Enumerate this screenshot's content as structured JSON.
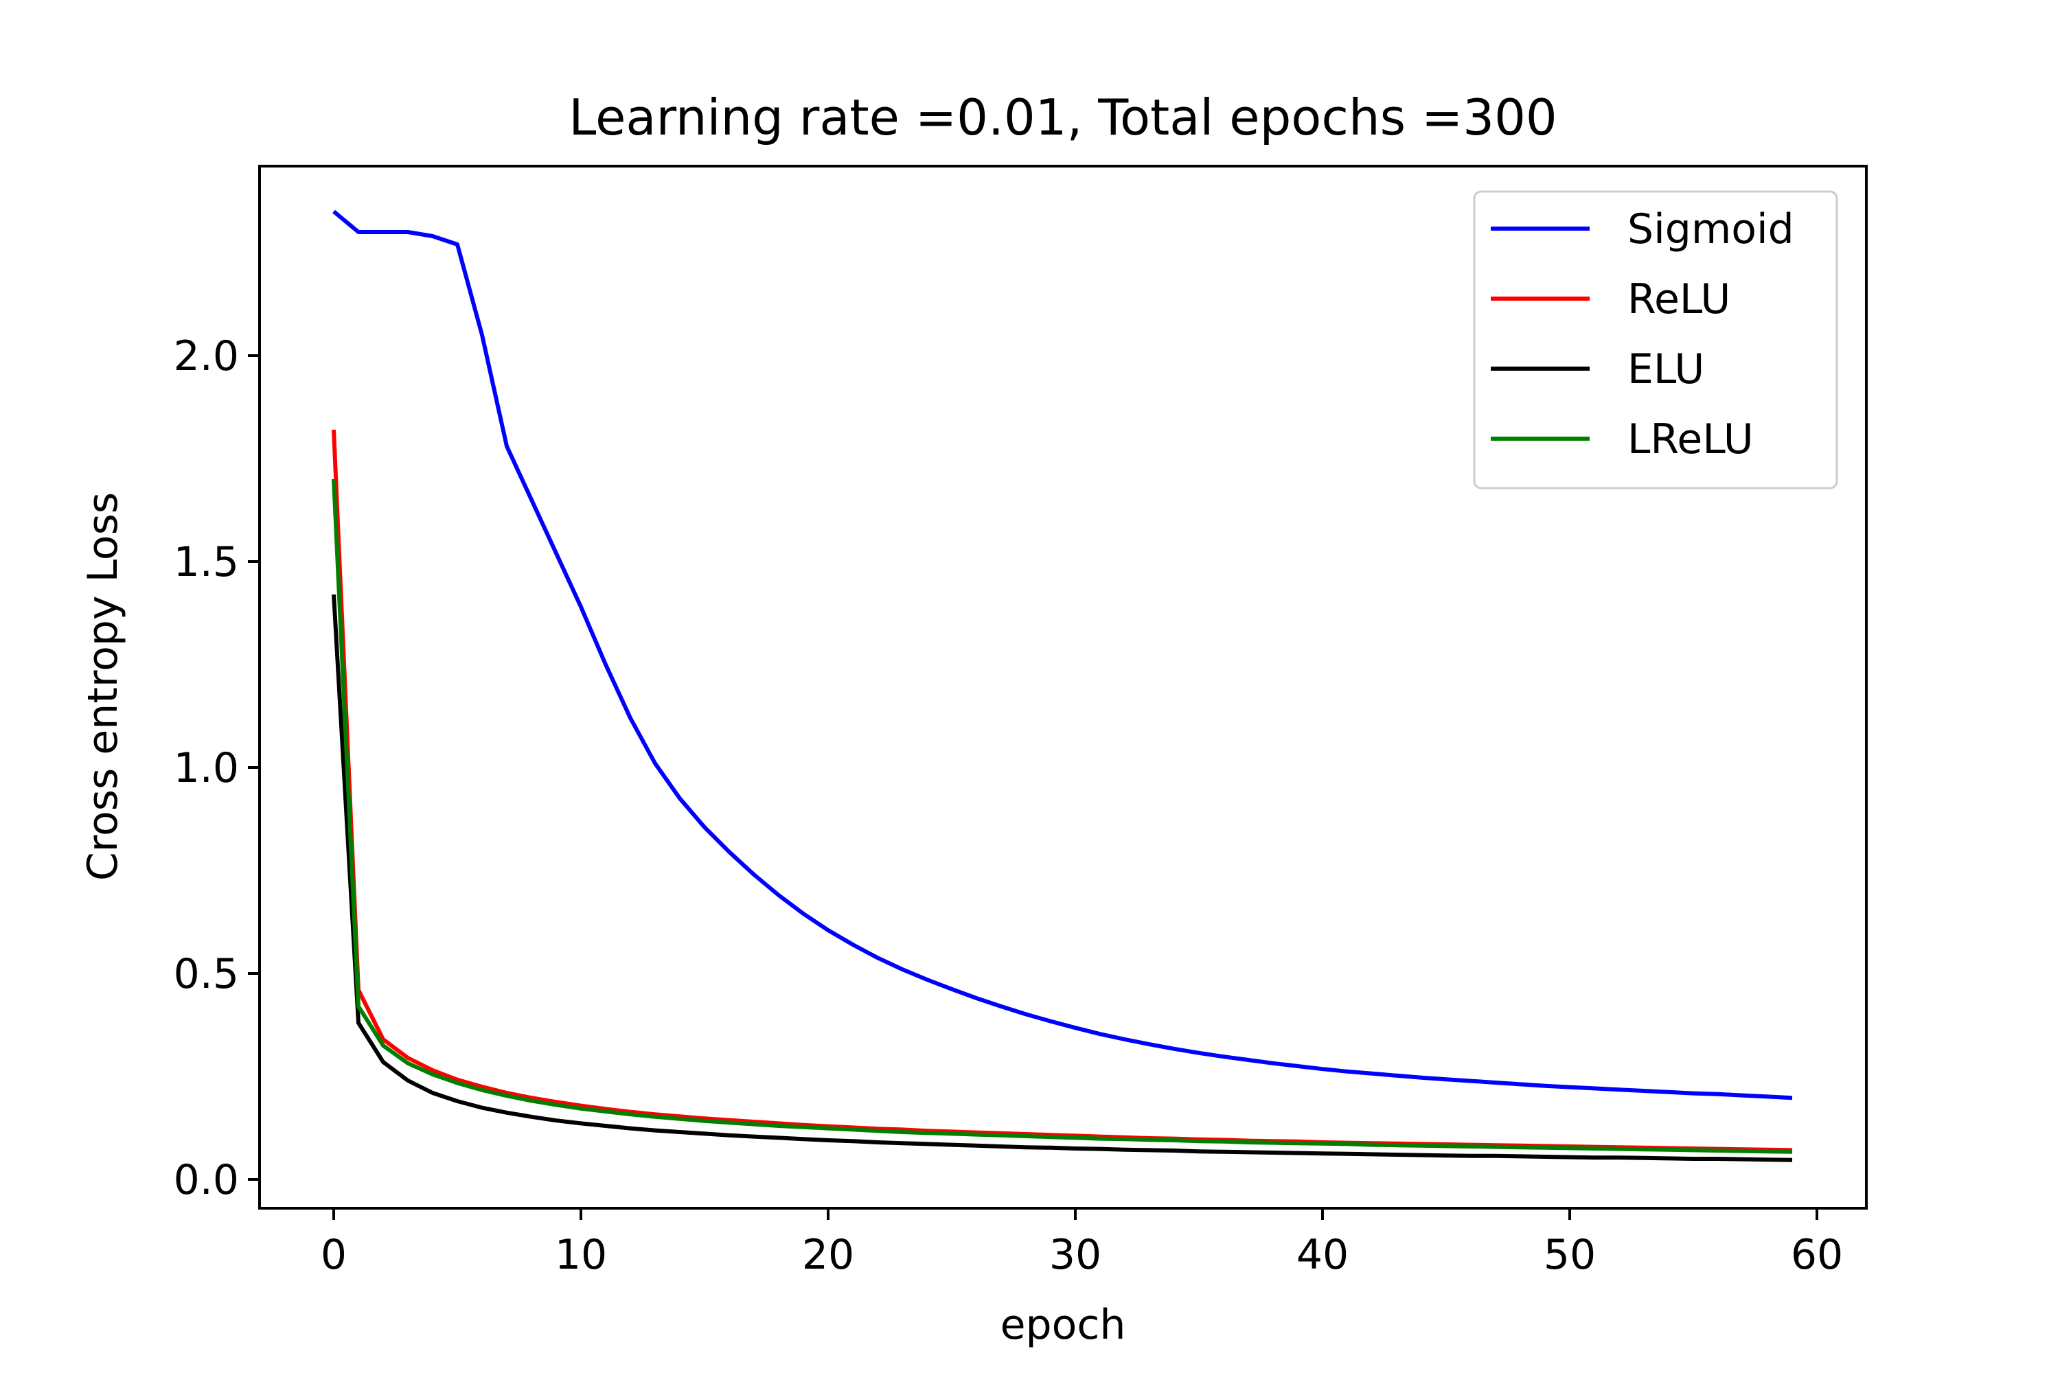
{
  "chart_data": {
    "type": "line",
    "title": "Learning rate =0.01, Total epochs =300",
    "xlabel": "epoch",
    "ylabel": "Cross entropy Loss",
    "xlim": [
      -3,
      62
    ],
    "ylim": [
      -0.07,
      2.46
    ],
    "xticks": [
      0,
      10,
      20,
      30,
      40,
      50,
      60
    ],
    "yticks": [
      0.0,
      0.5,
      1.0,
      1.5,
      2.0
    ],
    "xtick_labels": [
      "0",
      "10",
      "20",
      "30",
      "40",
      "50",
      "60"
    ],
    "ytick_labels": [
      "0.0",
      "0.5",
      "1.0",
      "1.5",
      "2.0"
    ],
    "grid": false,
    "legend_position": "top-right",
    "series": [
      {
        "name": "Sigmoid",
        "color": "#0000ff",
        "values": [
          2.35,
          2.3,
          2.3,
          2.3,
          2.29,
          2.27,
          2.05,
          1.78,
          1.65,
          1.52,
          1.39,
          1.25,
          1.12,
          1.01,
          0.925,
          0.855,
          0.795,
          0.74,
          0.69,
          0.645,
          0.605,
          0.57,
          0.538,
          0.51,
          0.485,
          0.462,
          0.44,
          0.42,
          0.401,
          0.384,
          0.368,
          0.353,
          0.34,
          0.328,
          0.317,
          0.307,
          0.298,
          0.29,
          0.282,
          0.275,
          0.268,
          0.262,
          0.257,
          0.252,
          0.247,
          0.243,
          0.239,
          0.235,
          0.231,
          0.227,
          0.224,
          0.221,
          0.218,
          0.215,
          0.212,
          0.209,
          0.207,
          0.204,
          0.201,
          0.198
        ]
      },
      {
        "name": "ReLU",
        "color": "#ff0000",
        "values": [
          1.82,
          0.46,
          0.34,
          0.295,
          0.265,
          0.242,
          0.225,
          0.21,
          0.198,
          0.188,
          0.179,
          0.171,
          0.164,
          0.158,
          0.153,
          0.148,
          0.144,
          0.14,
          0.136,
          0.132,
          0.129,
          0.126,
          0.123,
          0.121,
          0.118,
          0.116,
          0.114,
          0.112,
          0.11,
          0.108,
          0.106,
          0.104,
          0.102,
          0.1,
          0.099,
          0.097,
          0.096,
          0.094,
          0.093,
          0.092,
          0.09,
          0.089,
          0.088,
          0.087,
          0.086,
          0.085,
          0.084,
          0.083,
          0.082,
          0.081,
          0.08,
          0.079,
          0.078,
          0.077,
          0.076,
          0.075,
          0.074,
          0.073,
          0.072,
          0.071
        ]
      },
      {
        "name": "ELU",
        "color": "#000000",
        "values": [
          1.42,
          0.38,
          0.285,
          0.24,
          0.21,
          0.19,
          0.174,
          0.162,
          0.152,
          0.143,
          0.136,
          0.13,
          0.124,
          0.119,
          0.115,
          0.111,
          0.107,
          0.104,
          0.101,
          0.098,
          0.095,
          0.093,
          0.09,
          0.088,
          0.086,
          0.084,
          0.082,
          0.08,
          0.078,
          0.077,
          0.075,
          0.074,
          0.072,
          0.071,
          0.07,
          0.068,
          0.067,
          0.066,
          0.065,
          0.064,
          0.063,
          0.062,
          0.061,
          0.06,
          0.059,
          0.058,
          0.057,
          0.057,
          0.056,
          0.055,
          0.054,
          0.053,
          0.053,
          0.052,
          0.051,
          0.05,
          0.05,
          0.049,
          0.048,
          0.047
        ]
      },
      {
        "name": "LReLU",
        "color": "#008000",
        "values": [
          1.7,
          0.42,
          0.325,
          0.282,
          0.255,
          0.234,
          0.217,
          0.203,
          0.191,
          0.181,
          0.172,
          0.165,
          0.158,
          0.152,
          0.147,
          0.142,
          0.138,
          0.134,
          0.13,
          0.127,
          0.124,
          0.121,
          0.118,
          0.115,
          0.113,
          0.111,
          0.109,
          0.107,
          0.105,
          0.103,
          0.101,
          0.099,
          0.098,
          0.096,
          0.095,
          0.093,
          0.092,
          0.09,
          0.089,
          0.088,
          0.087,
          0.086,
          0.084,
          0.083,
          0.082,
          0.081,
          0.08,
          0.079,
          0.078,
          0.077,
          0.076,
          0.075,
          0.074,
          0.073,
          0.072,
          0.071,
          0.07,
          0.069,
          0.068,
          0.067
        ]
      }
    ]
  }
}
